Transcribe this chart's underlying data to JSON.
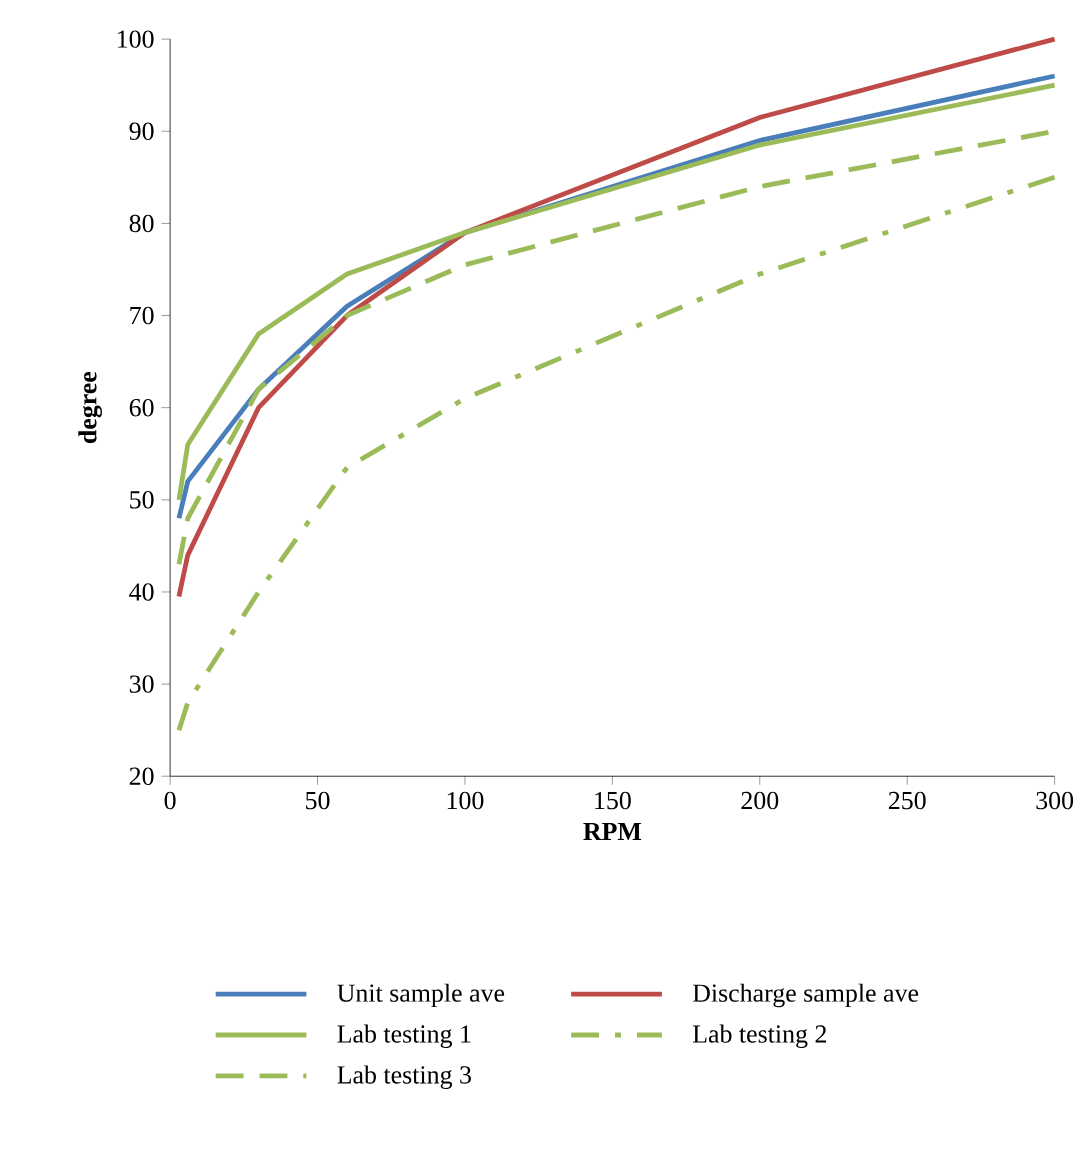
{
  "chart_data": {
    "type": "line",
    "xlabel": "RPM",
    "ylabel": "degree",
    "x": [
      3,
      6,
      30,
      60,
      100,
      200,
      300
    ],
    "series": [
      {
        "name": "Unit sample ave",
        "color": "#4a7ebb",
        "line_style": "solid",
        "values": [
          48,
          52,
          62,
          71,
          79,
          89,
          96
        ]
      },
      {
        "name": "Discharge sample ave",
        "color": "#be4b48",
        "line_style": "solid",
        "values": [
          39.5,
          44,
          60,
          70,
          79,
          91.5,
          100
        ]
      },
      {
        "name": "Lab testing 1",
        "color": "#9bbb59",
        "line_style": "solid",
        "values": [
          50,
          56,
          68,
          74.5,
          79,
          88.5,
          95
        ]
      },
      {
        "name": "Lab testing 2",
        "color": "#9bbb59",
        "line_style": "dashdot",
        "values": [
          25,
          28,
          40,
          53.5,
          61,
          74.5,
          85
        ]
      },
      {
        "name": "Lab testing 3",
        "color": "#9bbb59",
        "line_style": "dashed",
        "values": [
          43,
          48,
          62,
          70,
          75.5,
          84,
          90
        ]
      }
    ],
    "xlim": [
      0,
      300
    ],
    "xticks": [
      0,
      50,
      100,
      150,
      200,
      250,
      300
    ],
    "ylim": [
      20,
      100
    ],
    "yticks": [
      20,
      30,
      40,
      50,
      60,
      70,
      80,
      90,
      100
    ],
    "grid": false,
    "legend": "bottom",
    "marker": "none"
  }
}
